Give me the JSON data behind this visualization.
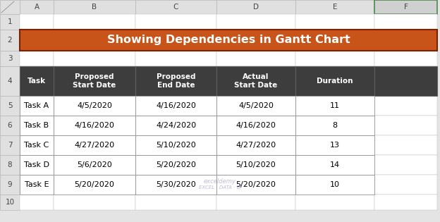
{
  "title": "Showing Dependencies in Gantt Chart",
  "title_bg": "#C8541A",
  "title_text_color": "#FFFFFF",
  "header_bg": "#3D3D3D",
  "header_text_color": "#FFFFFF",
  "row_text_color": "#000000",
  "excel_bg": "#E4E4E4",
  "col_header_bg": "#E0E0E0",
  "row_header_bg": "#E0E0E0",
  "f_col_bg": "#D0D0D0",
  "f_col_border": "#4A8A4A",
  "grid_line": "#B8B8B8",
  "col_labels": [
    "A",
    "B",
    "C",
    "D",
    "E",
    "F"
  ],
  "row_labels": [
    "1",
    "2",
    "3",
    "4",
    "5",
    "6",
    "7",
    "8",
    "9",
    "10"
  ],
  "col_headers": [
    "Task",
    "Proposed\nStart Date",
    "Proposed\nEnd Date",
    "Actual\nStart Date",
    "Duration"
  ],
  "rows": [
    [
      "Task A",
      "4/5/2020",
      "4/16/2020",
      "4/5/2020",
      "11"
    ],
    [
      "Task B",
      "4/16/2020",
      "4/24/2020",
      "4/16/2020",
      "8"
    ],
    [
      "Task C",
      "4/27/2020",
      "5/10/2020",
      "4/27/2020",
      "13"
    ],
    [
      "Task D",
      "5/6/2020",
      "5/20/2020",
      "5/10/2020",
      "14"
    ],
    [
      "Task E",
      "5/20/2020",
      "5/30/2020",
      "5/20/2020",
      "10"
    ]
  ],
  "figsize": [
    6.24,
    3.15
  ],
  "dpi": 100
}
